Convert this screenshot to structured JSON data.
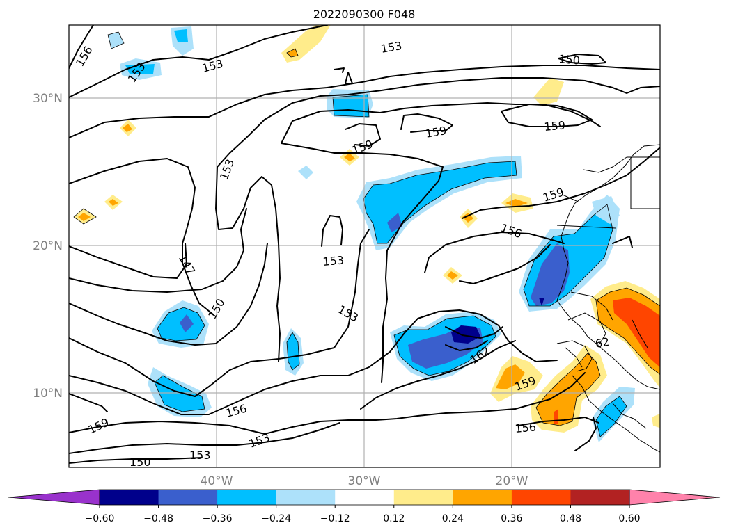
{
  "title": "2022090300 F048",
  "map": {
    "lat_ticks": [
      "10°N",
      "20°N",
      "30°N"
    ],
    "lon_ticks": [
      "40°W",
      "30°W",
      "20°W"
    ],
    "contour_labels": [
      "156",
      "153",
      "153",
      "153",
      "150",
      "153",
      "159",
      "159",
      "159",
      "153",
      "159",
      "156",
      "147",
      "150",
      "153",
      "153",
      "156",
      "162",
      "159",
      "156",
      "159",
      "153",
      "150",
      "156",
      "62"
    ]
  },
  "colorbar": {
    "tick_labels": [
      "−0.60",
      "−0.48",
      "−0.36",
      "−0.24",
      "−0.12",
      "0.12",
      "0.24",
      "0.36",
      "0.48",
      "0.60"
    ],
    "colors": [
      "#9932cc",
      "#00008b",
      "#3a5fcd",
      "#00bfff",
      "#ade1fa",
      "#ffffff",
      "#ffec8b",
      "#ffa500",
      "#ff4500",
      "#b22222",
      "#ff82ab"
    ]
  },
  "colors": {
    "neg_weak": "#ade1fa",
    "neg_mod": "#00bfff",
    "neg_strong": "#3a5fcd",
    "neg_max": "#00008b",
    "pos_weak": "#ffec8b",
    "pos_mod": "#ffa500",
    "pos_strong": "#ff4500"
  }
}
